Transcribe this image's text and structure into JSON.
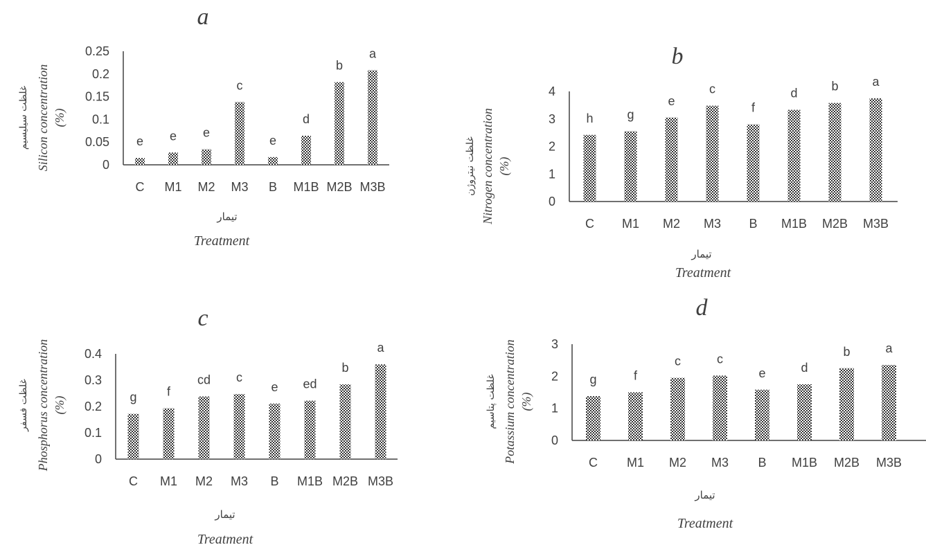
{
  "chart_data": [
    {
      "type": "bar",
      "title": "a",
      "ylabel": "Silicon concentration",
      "ylabel_unit": "(%)",
      "ylabel_fa": "غلظت سیلیسیم",
      "xlabel_fa": "تیمار",
      "xlabel": "Treatment",
      "categories": [
        "C",
        "M1",
        "M2",
        "M3",
        "B",
        "M1B",
        "M2B",
        "M3B"
      ],
      "values": [
        0.015,
        0.027,
        0.034,
        0.138,
        0.017,
        0.064,
        0.182,
        0.208
      ],
      "letters": [
        "e",
        "e",
        "e",
        "c",
        "e",
        "d",
        "b",
        "a"
      ],
      "yticks": [
        "0",
        "0.05",
        "0.1",
        "0.15",
        "0.2",
        "0.25"
      ],
      "ylim": [
        0,
        0.25
      ],
      "grid": false
    },
    {
      "type": "bar",
      "title": "b",
      "ylabel": "Nitrogen concentration",
      "ylabel_unit": "(%)",
      "ylabel_fa": "غلظت نیتروژن",
      "xlabel_fa": "تیمار",
      "xlabel": "Treatment",
      "categories": [
        "C",
        "M1",
        "M2",
        "M3",
        "B",
        "M1B",
        "M2B",
        "M3B"
      ],
      "values": [
        2.42,
        2.55,
        3.05,
        3.48,
        2.8,
        3.33,
        3.58,
        3.75
      ],
      "letters": [
        "h",
        "g",
        "e",
        "c",
        "f",
        "d",
        "b",
        "a"
      ],
      "yticks": [
        "0",
        "1",
        "2",
        "3",
        "4"
      ],
      "ylim": [
        0,
        4
      ],
      "grid": false
    },
    {
      "type": "bar",
      "title": "c",
      "ylabel": "Phosphorus concentration",
      "ylabel_unit": "(%)",
      "ylabel_fa": "غلظت فسفر",
      "xlabel_fa": "تیمار",
      "xlabel": "Treatment",
      "categories": [
        "C",
        "M1",
        "M2",
        "M3",
        "B",
        "M1B",
        "M2B",
        "M3B"
      ],
      "values": [
        0.172,
        0.193,
        0.238,
        0.247,
        0.211,
        0.222,
        0.284,
        0.36
      ],
      "letters": [
        "g",
        "f",
        "cd",
        "c",
        "e",
        "ed",
        "b",
        "a"
      ],
      "yticks": [
        "0",
        "0.1",
        "0.2",
        "0.3",
        "0.4"
      ],
      "ylim": [
        0,
        0.4
      ],
      "grid": false
    },
    {
      "type": "bar",
      "title": "d",
      "ylabel": "Potassium concentration",
      "ylabel_unit": "(%)",
      "ylabel_fa": "غلظت پتاسیم",
      "xlabel_fa": "تیمار",
      "xlabel": "Treatment",
      "categories": [
        "C",
        "M1",
        "M2",
        "M3",
        "B",
        "M1B",
        "M2B",
        "M3B"
      ],
      "values": [
        1.38,
        1.5,
        1.95,
        2.02,
        1.58,
        1.75,
        2.25,
        2.35
      ],
      "letters": [
        "g",
        "f",
        "c",
        "c",
        "e",
        "d",
        "b",
        "a"
      ],
      "yticks": [
        "0",
        "1",
        "2",
        "3"
      ],
      "ylim": [
        0,
        3
      ],
      "grid": false
    }
  ]
}
